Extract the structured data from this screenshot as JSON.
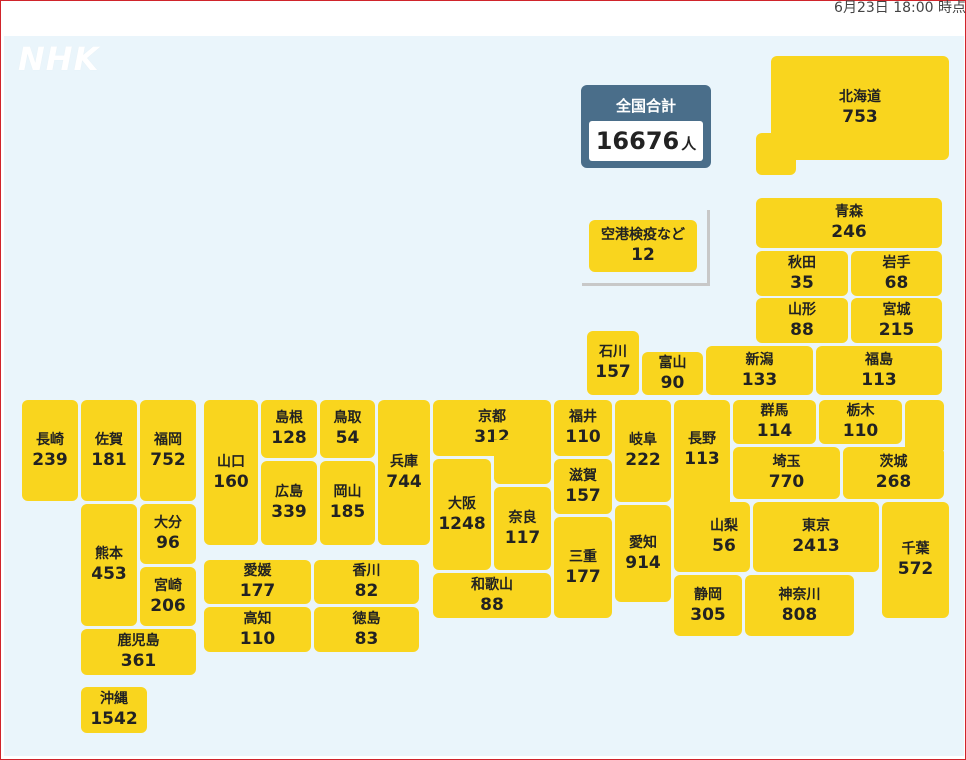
{
  "timestamp": "6月23日 18:00 時点",
  "logo": "NHK",
  "total": {
    "label": "全国合計",
    "value": "16676",
    "unit": "人"
  },
  "colors": {
    "tile": "#f9d51e",
    "total_bg": "#4a6e8a",
    "sea": "#eaf5fb",
    "frame": "#d0242b"
  },
  "prefectures": {
    "hokkaido": {
      "name": "北海道",
      "count": "753"
    },
    "airport": {
      "name": "空港検疫など",
      "count": "12"
    },
    "aomori": {
      "name": "青森",
      "count": "246"
    },
    "akita": {
      "name": "秋田",
      "count": "35"
    },
    "iwate": {
      "name": "岩手",
      "count": "68"
    },
    "yamagata": {
      "name": "山形",
      "count": "88"
    },
    "miyagi": {
      "name": "宮城",
      "count": "215"
    },
    "ishikawa": {
      "name": "石川",
      "count": "157"
    },
    "toyama": {
      "name": "富山",
      "count": "90"
    },
    "niigata": {
      "name": "新潟",
      "count": "133"
    },
    "fukushima": {
      "name": "福島",
      "count": "113"
    },
    "nagasaki": {
      "name": "長崎",
      "count": "239"
    },
    "saga": {
      "name": "佐賀",
      "count": "181"
    },
    "fukuoka": {
      "name": "福岡",
      "count": "752"
    },
    "yamaguchi": {
      "name": "山口",
      "count": "160"
    },
    "shimane": {
      "name": "島根",
      "count": "128"
    },
    "tottori": {
      "name": "鳥取",
      "count": "54"
    },
    "hyogo": {
      "name": "兵庫",
      "count": "744"
    },
    "kyoto": {
      "name": "京都",
      "count": "312"
    },
    "fukui": {
      "name": "福井",
      "count": "110"
    },
    "gifu": {
      "name": "岐阜",
      "count": "222"
    },
    "nagano": {
      "name": "長野",
      "count": "113"
    },
    "gunma": {
      "name": "群馬",
      "count": "114"
    },
    "tochigi": {
      "name": "栃木",
      "count": "110"
    },
    "hiroshima": {
      "name": "広島",
      "count": "339"
    },
    "okayama": {
      "name": "岡山",
      "count": "185"
    },
    "osaka": {
      "name": "大阪",
      "count": "1248"
    },
    "nara": {
      "name": "奈良",
      "count": "117"
    },
    "shiga": {
      "name": "滋賀",
      "count": "157"
    },
    "saitama": {
      "name": "埼玉",
      "count": "770"
    },
    "ibaraki": {
      "name": "茨城",
      "count": "268"
    },
    "kumamoto": {
      "name": "熊本",
      "count": "453"
    },
    "oita": {
      "name": "大分",
      "count": "96"
    },
    "miyazaki": {
      "name": "宮崎",
      "count": "206"
    },
    "yamanashi": {
      "name": "山梨",
      "count": "56"
    },
    "tokyo": {
      "name": "東京",
      "count": "2413"
    },
    "chiba": {
      "name": "千葉",
      "count": "572"
    },
    "aichi": {
      "name": "愛知",
      "count": "914"
    },
    "mie": {
      "name": "三重",
      "count": "177"
    },
    "ehime": {
      "name": "愛媛",
      "count": "177"
    },
    "kagawa": {
      "name": "香川",
      "count": "82"
    },
    "kochi": {
      "name": "高知",
      "count": "110"
    },
    "tokushima": {
      "name": "徳島",
      "count": "83"
    },
    "wakayama": {
      "name": "和歌山",
      "count": "88"
    },
    "shizuoka": {
      "name": "静岡",
      "count": "305"
    },
    "kanagawa": {
      "name": "神奈川",
      "count": "808"
    },
    "kagoshima": {
      "name": "鹿児島",
      "count": "361"
    },
    "okinawa": {
      "name": "沖縄",
      "count": "1542"
    }
  }
}
